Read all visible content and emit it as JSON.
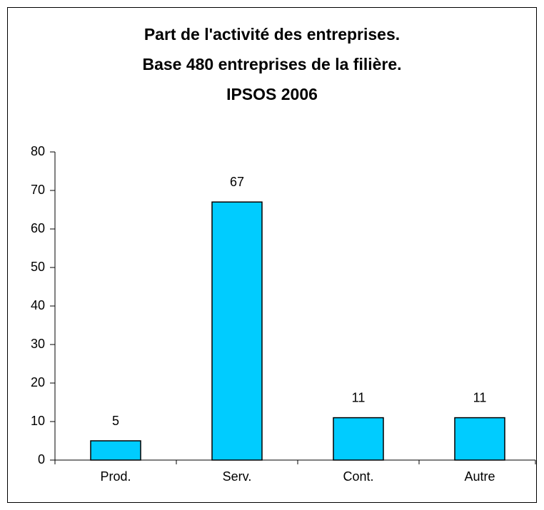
{
  "chart_data": {
    "type": "bar",
    "title": [
      "Part de l'activité des entreprises.",
      "Base 480 entreprises de la filière.",
      "IPSOS 2006"
    ],
    "categories": [
      "Prod.",
      "Serv.",
      "Cont.",
      "Autre"
    ],
    "values": [
      5,
      67,
      11,
      11
    ],
    "color": "#00ccff",
    "ylim": [
      0,
      80
    ],
    "yticks": [
      0,
      10,
      20,
      30,
      40,
      50,
      60,
      70,
      80
    ],
    "grid": false
  }
}
